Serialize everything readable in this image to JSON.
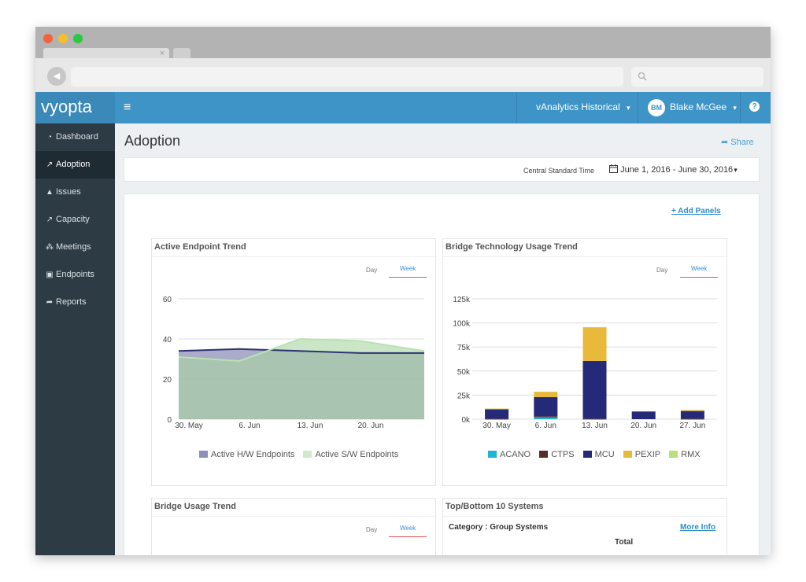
{
  "browser": {
    "tab_close": "×",
    "back_icon": "◀"
  },
  "header": {
    "logo_text": "vyopta",
    "hamburger": "≡",
    "product_select": "vAnalytics Historical",
    "user_initials": "BM",
    "user_name": "Blake McGee",
    "help": "?",
    "chevron": "⌄"
  },
  "sidebar": {
    "items": [
      {
        "label": "Dashboard",
        "icon": "dashboard-icon",
        "glyph": "◔"
      },
      {
        "label": "Adoption",
        "icon": "line-chart-icon",
        "glyph": "↗"
      },
      {
        "label": "Issues",
        "icon": "warning-icon",
        "glyph": "▲"
      },
      {
        "label": "Capacity",
        "icon": "area-chart-icon",
        "glyph": "↗"
      },
      {
        "label": "Meetings",
        "icon": "people-icon",
        "glyph": "⁂"
      },
      {
        "label": "Endpoints",
        "icon": "monitor-icon",
        "glyph": "▣"
      },
      {
        "label": "Reports",
        "icon": "share-arrow-icon",
        "glyph": "➦"
      }
    ],
    "active_index": 1
  },
  "main": {
    "title": "Adoption",
    "share_label": "Share",
    "share_glyph": "➦",
    "timezone": "Central Standard Time",
    "date_range": "June 1, 2016 - June 30, 2016",
    "add_panels": "+ Add Panels",
    "toggle_day": "Day",
    "toggle_week": "Week"
  },
  "panels": {
    "endpoint_trend": {
      "title": "Active Endpoint Trend"
    },
    "bridge_tech": {
      "title": "Bridge Technology Usage Trend"
    },
    "bridge_usage": {
      "title": "Bridge Usage Trend"
    },
    "top_bottom": {
      "title": "Top/Bottom 10 Systems",
      "category": "Category : Group Systems",
      "more_info": "More Info",
      "total_header": "Total"
    }
  },
  "chart_data": [
    {
      "type": "area",
      "categories": [
        "30. May",
        "6. Jun",
        "13. Jun",
        "20. Jun",
        "27. Jun"
      ],
      "ylim": [
        0,
        60
      ],
      "yticks": [
        0,
        20,
        40,
        60
      ],
      "series": [
        {
          "name": "Active H/W Endpoints",
          "values": [
            34,
            35,
            34,
            33,
            33
          ],
          "color": "#8f8fb8"
        },
        {
          "name": "Active S/W Endpoints",
          "values": [
            31,
            29,
            40,
            39,
            34
          ],
          "color": "#a8d6a0"
        }
      ],
      "grid": true,
      "legend": "bottom"
    },
    {
      "type": "bar",
      "stacked": true,
      "categories": [
        "30. May",
        "6. Jun",
        "13. Jun",
        "20. Jun",
        "27. Jun"
      ],
      "ylim": [
        0,
        125000
      ],
      "yticks": [
        "0k",
        "25k",
        "50k",
        "75k",
        "100k",
        "125k"
      ],
      "series": [
        {
          "name": "ACANO",
          "values": [
            0,
            2000,
            0,
            0,
            0
          ],
          "color": "#1fb5d6"
        },
        {
          "name": "CTPS",
          "values": [
            500,
            1000,
            500,
            0,
            500
          ],
          "color": "#5a2b2b"
        },
        {
          "name": "MCU",
          "values": [
            10000,
            20000,
            60000,
            8000,
            8000
          ],
          "color": "#252a78"
        },
        {
          "name": "PEXIP",
          "values": [
            500,
            5500,
            35000,
            0,
            1000
          ],
          "color": "#e8b93a"
        },
        {
          "name": "RMX",
          "values": [
            0,
            0,
            0,
            0,
            0
          ],
          "color": "#b9e07a"
        }
      ],
      "grid": true,
      "legend": "bottom"
    }
  ]
}
